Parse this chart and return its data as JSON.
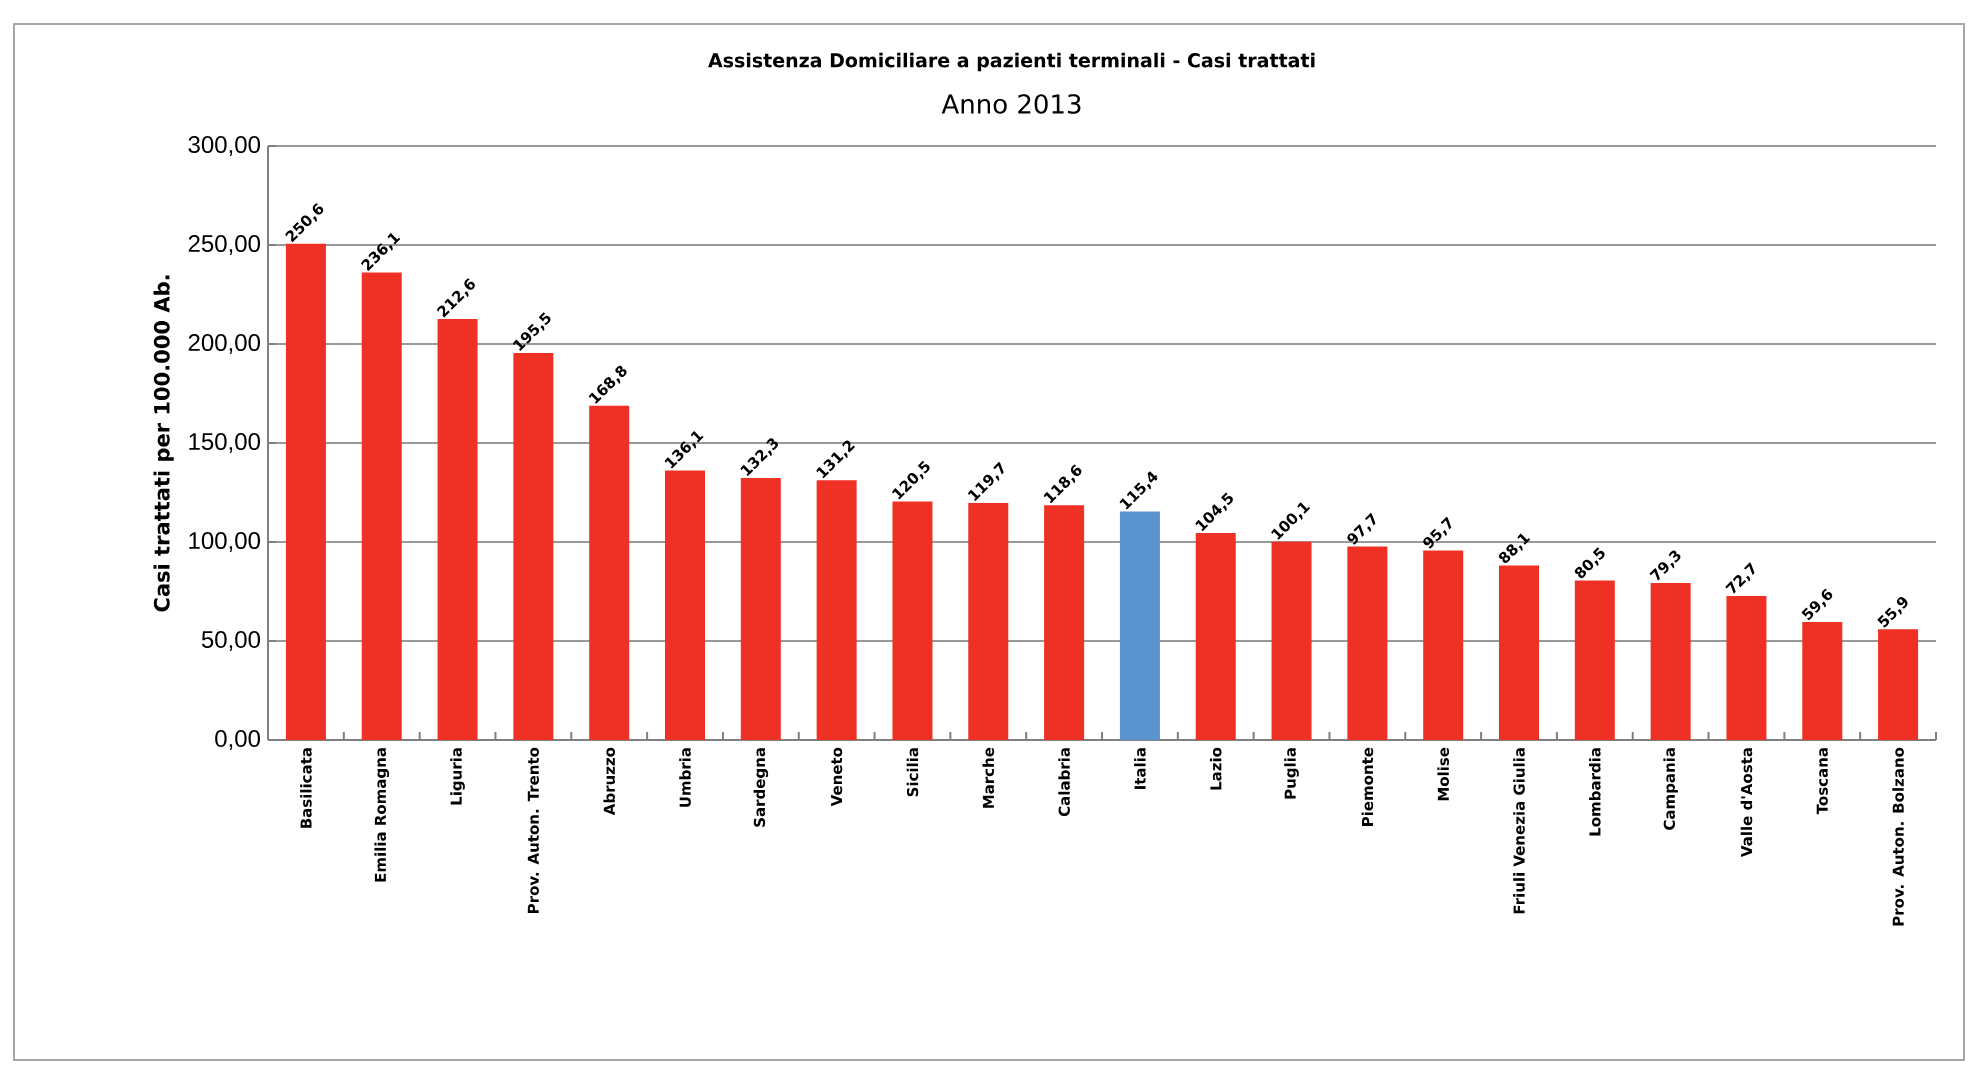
{
  "chart_data": {
    "type": "bar",
    "title": "Assistenza Domiciliare a pazienti terminali - Casi trattati",
    "subtitle": "Anno 2013",
    "ylabel": "Casi trattati per 100.000 Ab.",
    "categories": [
      "Basilicata",
      "Emilia Romagna",
      "Liguria",
      "Prov. Auton. Trento",
      "Abruzzo",
      "Umbria",
      "Sardegna",
      "Veneto",
      "Sicilia",
      "Marche",
      "Calabria",
      "Italia",
      "Lazio",
      "Puglia",
      "Piemonte",
      "Molise",
      "Friuli Venezia Giulia",
      "Lombardia",
      "Campania",
      "Valle d'Aosta",
      "Toscana",
      "Prov. Auton. Bolzano"
    ],
    "values": [
      250.6,
      236.1,
      212.6,
      195.5,
      168.8,
      136.1,
      132.3,
      131.2,
      120.5,
      119.7,
      118.6,
      115.4,
      104.5,
      100.1,
      97.7,
      95.7,
      88.1,
      80.5,
      79.3,
      72.7,
      59.6,
      55.9
    ],
    "colors": [
      "#ee3124",
      "#ee3124",
      "#ee3124",
      "#ee3124",
      "#ee3124",
      "#ee3124",
      "#ee3124",
      "#ee3124",
      "#ee3124",
      "#ee3124",
      "#ee3124",
      "#5b93cf",
      "#ee3124",
      "#ee3124",
      "#ee3124",
      "#ee3124",
      "#ee3124",
      "#ee3124",
      "#ee3124",
      "#ee3124",
      "#ee3124",
      "#ee3124"
    ],
    "value_labels": [
      "250,6",
      "236,1",
      "212,6",
      "195,5",
      "168,8",
      "136,1",
      "132,3",
      "131,2",
      "120,5",
      "119,7",
      "118,6",
      "115,4",
      "104,5",
      "100,1",
      "97,7",
      "95,7",
      "88,1",
      "80,5",
      "79,3",
      "72,7",
      "59,6",
      "55,9"
    ],
    "ylim": [
      0,
      300
    ],
    "yticks": [
      {
        "value": 0,
        "label": "0,00"
      },
      {
        "value": 50,
        "label": "50,00"
      },
      {
        "value": 100,
        "label": "100,00"
      },
      {
        "value": 150,
        "label": "150,00"
      },
      {
        "value": 200,
        "label": "200,00"
      },
      {
        "value": 250,
        "label": "250,00"
      },
      {
        "value": 300,
        "label": "300,00"
      }
    ],
    "grid": "y"
  }
}
